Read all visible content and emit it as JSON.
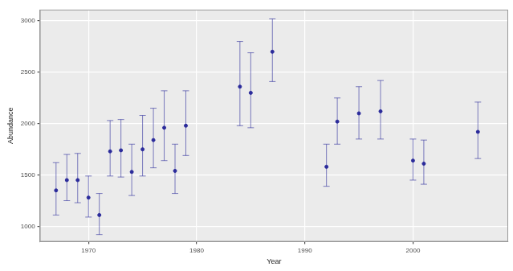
{
  "chart_data": {
    "type": "scatter",
    "x_label": "Year",
    "y_label": "Abundance",
    "x": [
      1967,
      1968,
      1969,
      1970,
      1971,
      1972,
      1973,
      1974,
      1975,
      1976,
      1977,
      1978,
      1979,
      1984,
      1985,
      1987,
      1992,
      1993,
      1995,
      1997,
      2000,
      2001,
      2006
    ],
    "values": [
      1350,
      1450,
      1450,
      1280,
      1110,
      1730,
      1740,
      1530,
      1750,
      1840,
      1960,
      1540,
      1980,
      2360,
      2300,
      2700,
      1580,
      2020,
      2100,
      2120,
      1640,
      1610,
      1920
    ],
    "lower": [
      1110,
      1250,
      1230,
      1090,
      920,
      1490,
      1480,
      1300,
      1490,
      1570,
      1640,
      1320,
      1690,
      1980,
      1960,
      2410,
      1390,
      1800,
      1850,
      1850,
      1450,
      1410,
      1660
    ],
    "upper": [
      1620,
      1700,
      1710,
      1490,
      1320,
      2030,
      2040,
      1800,
      2080,
      2150,
      2320,
      1800,
      2320,
      2800,
      2690,
      3020,
      1800,
      2250,
      2360,
      2420,
      1850,
      1840,
      2210
    ],
    "color": "#2b2b9b",
    "marker": "circle",
    "xlim": [
      1965.5,
      2008.8
    ],
    "xticks": [
      1970,
      1980,
      1990,
      2000
    ],
    "ylim": [
      850,
      3110
    ],
    "yticks": [
      1000,
      1500,
      2000,
      2500,
      3000
    ],
    "grid": true
  }
}
